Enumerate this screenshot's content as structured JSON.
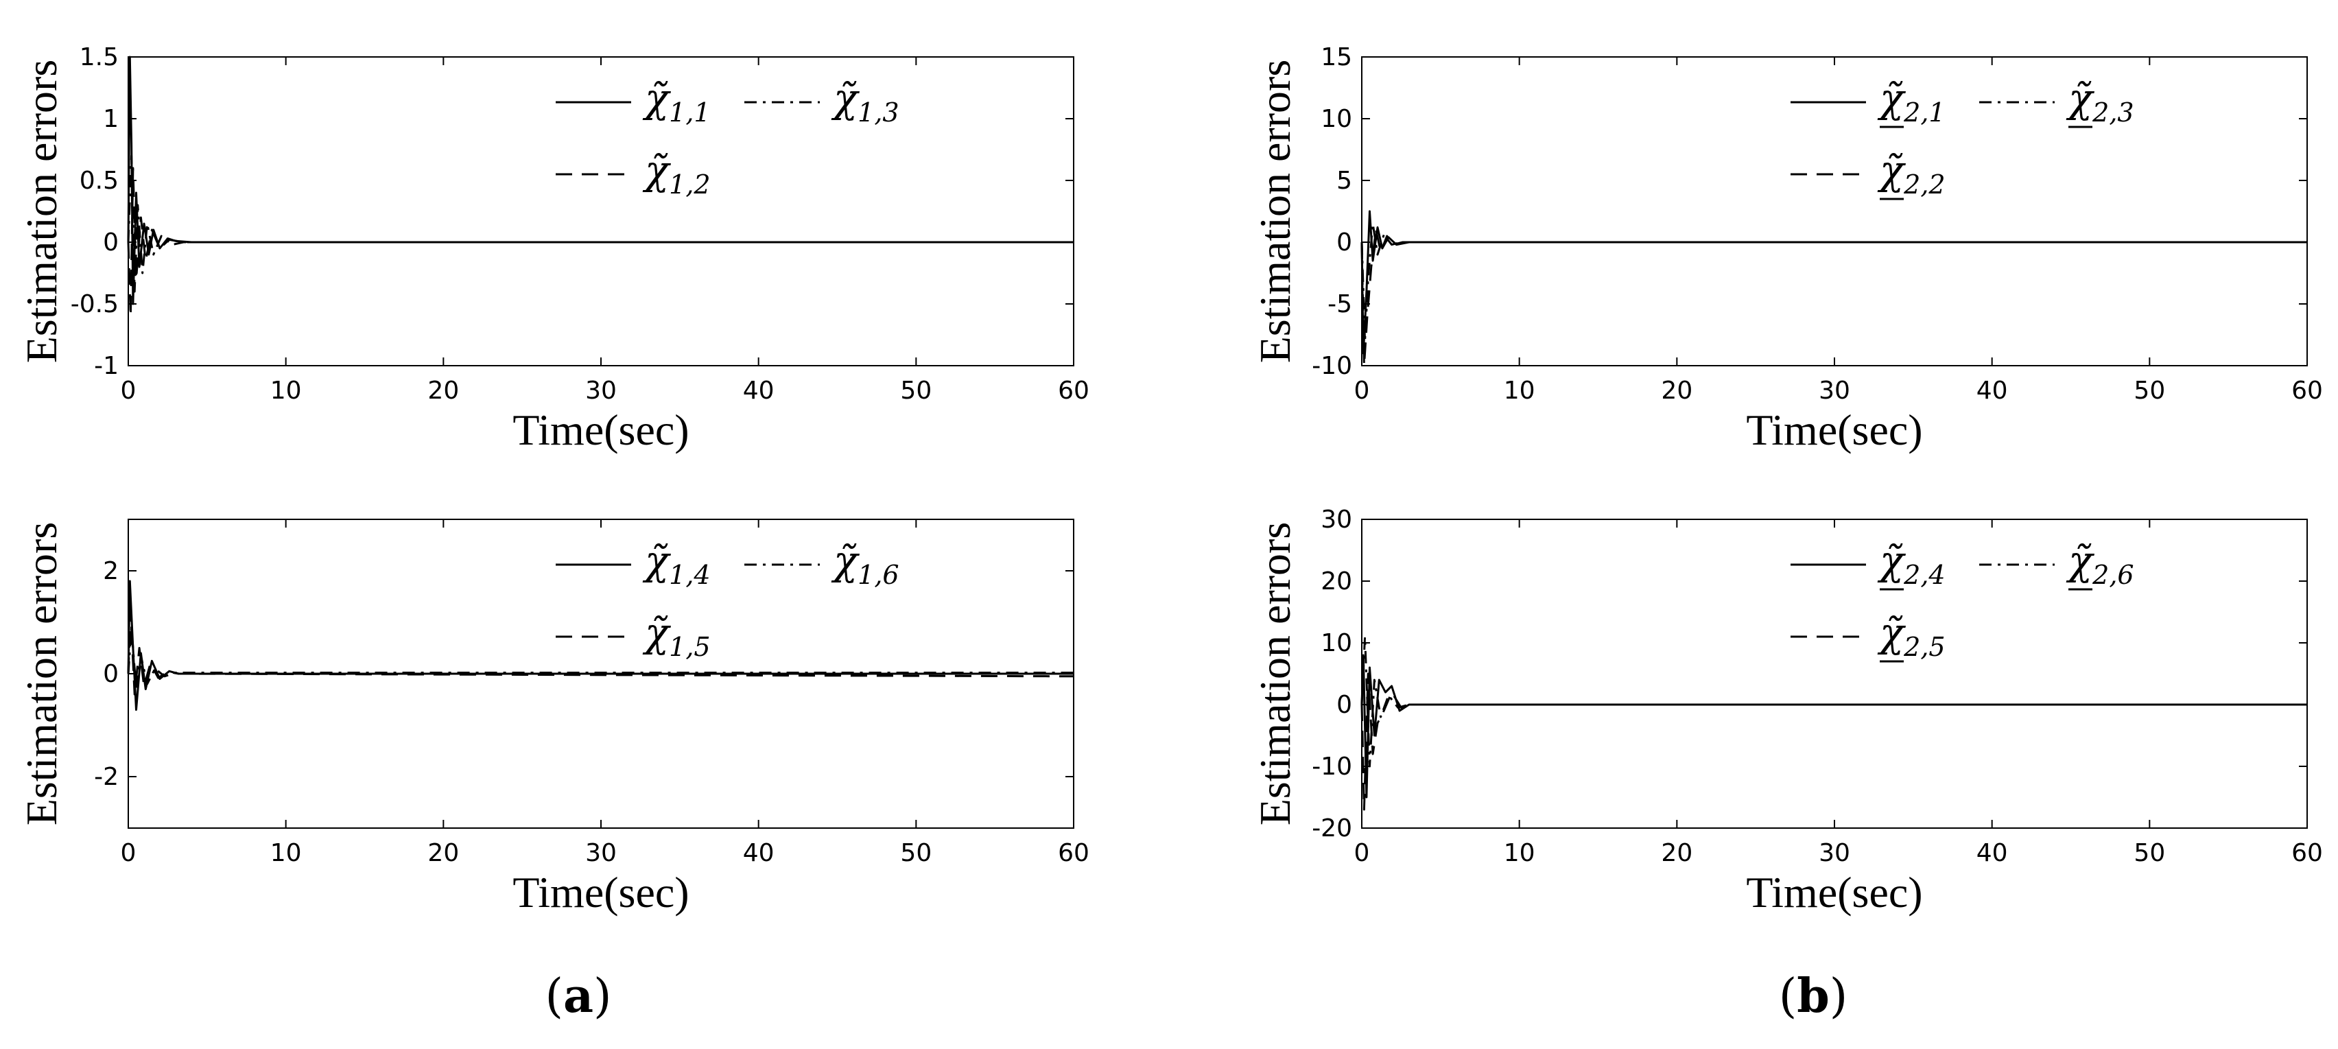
{
  "figure": {
    "captions": [
      {
        "open": "(",
        "letter": "a",
        "close": ")"
      },
      {
        "open": "(",
        "letter": "b",
        "close": ")"
      }
    ]
  },
  "chart_data": [
    {
      "type": "line",
      "ylabel": "Estimation errors",
      "xlabel": "Time(sec)",
      "xlim": [
        0,
        60
      ],
      "ylim": [
        -1,
        1.5
      ],
      "xticks": [
        "0",
        "10",
        "20",
        "30",
        "40",
        "50",
        "60"
      ],
      "yticks": [
        "-1",
        "-0.5",
        "0",
        "0.5",
        "1",
        "1.5"
      ],
      "grid": false,
      "legend_placement": "top-right",
      "legend_symbol": "χ̃",
      "legend_underline": false,
      "series": [
        {
          "name": "1,1",
          "style": "solid",
          "x": [
            0,
            0.1,
            0.2,
            0.3,
            0.5,
            0.7,
            1.0,
            1.3,
            1.6,
            2.0,
            2.5,
            3.0,
            4.0,
            60
          ],
          "y": [
            0,
            1.5,
            0.8,
            -0.5,
            0.4,
            -0.2,
            0.15,
            -0.1,
            0.1,
            -0.05,
            0.03,
            0.01,
            0,
            0
          ]
        },
        {
          "name": "1,2",
          "style": "dashed",
          "x": [
            0,
            0.15,
            0.3,
            0.5,
            0.8,
            1.1,
            1.5,
            2.0,
            2.6,
            3.5,
            60
          ],
          "y": [
            0,
            -0.6,
            0.6,
            -0.3,
            0.2,
            -0.15,
            0.1,
            -0.05,
            0.02,
            0,
            0
          ]
        },
        {
          "name": "1,3",
          "style": "dashdot",
          "x": [
            0,
            0.2,
            0.4,
            0.6,
            0.9,
            1.2,
            1.6,
            2.1,
            2.8,
            3.5,
            60
          ],
          "y": [
            0,
            0.7,
            -0.4,
            0.3,
            -0.25,
            0.15,
            -0.1,
            0.05,
            -0.02,
            0,
            0
          ]
        }
      ]
    },
    {
      "type": "line",
      "ylabel": "Estimation errors",
      "xlabel": "Time(sec)",
      "xlim": [
        0,
        60
      ],
      "ylim": [
        -10,
        15
      ],
      "xticks": [
        "0",
        "10",
        "20",
        "30",
        "40",
        "50",
        "60"
      ],
      "yticks": [
        "-10",
        "-5",
        "0",
        "5",
        "10",
        "15"
      ],
      "grid": false,
      "legend_placement": "top-right",
      "legend_symbol": "χ̃",
      "legend_underline": true,
      "series": [
        {
          "name": "2,1",
          "style": "solid",
          "x": [
            0,
            0.1,
            0.3,
            0.5,
            0.7,
            1.0,
            1.3,
            1.7,
            2.2,
            3.0,
            60
          ],
          "y": [
            0,
            -9,
            -4,
            2.5,
            -1.5,
            1.2,
            -0.5,
            0.4,
            -0.2,
            0,
            0
          ]
        },
        {
          "name": "2,2",
          "style": "dashed",
          "x": [
            0,
            0.15,
            0.35,
            0.6,
            0.9,
            1.2,
            1.6,
            2.0,
            2.6,
            60
          ],
          "y": [
            0,
            -10,
            -6,
            -2,
            1,
            -0.8,
            0.5,
            -0.2,
            0,
            0
          ]
        },
        {
          "name": "2,3",
          "style": "dashdot",
          "x": [
            0,
            0.2,
            0.4,
            0.7,
            1.0,
            1.4,
            1.9,
            2.5,
            60
          ],
          "y": [
            0,
            -8,
            -3,
            1.5,
            -1,
            0.6,
            -0.2,
            0,
            0
          ]
        }
      ]
    },
    {
      "type": "line",
      "ylabel": "Estimation errors",
      "xlabel": "Time(sec)",
      "xlim": [
        0,
        60
      ],
      "ylim": [
        -3,
        3
      ],
      "xticks": [
        "0",
        "10",
        "20",
        "30",
        "40",
        "50",
        "60"
      ],
      "yticks": [
        "-2",
        "0",
        "2"
      ],
      "grid": false,
      "legend_placement": "top-right",
      "legend_symbol": "χ̃",
      "legend_underline": false,
      "series": [
        {
          "name": "1,4",
          "style": "solid",
          "x": [
            0,
            0.1,
            0.3,
            0.5,
            0.8,
            1.1,
            1.5,
            2.0,
            2.6,
            3.2,
            60
          ],
          "y": [
            0,
            1.8,
            0.5,
            -0.7,
            0.4,
            -0.3,
            0.25,
            -0.1,
            0.05,
            0,
            0
          ]
        },
        {
          "name": "1,5",
          "style": "dashed",
          "x": [
            0,
            0.15,
            0.4,
            0.7,
            1.0,
            1.4,
            1.9,
            2.5,
            3.2,
            60
          ],
          "y": [
            0,
            1.2,
            -0.4,
            0.5,
            -0.25,
            0.2,
            -0.08,
            0.04,
            0,
            -0.05
          ]
        },
        {
          "name": "1,6",
          "style": "dashdot",
          "x": [
            0,
            0.2,
            0.5,
            0.8,
            1.2,
            1.7,
            2.3,
            3.0,
            60
          ],
          "y": [
            0,
            0.9,
            -0.3,
            0.35,
            -0.2,
            0.1,
            -0.05,
            0.02,
            0.02
          ]
        }
      ]
    },
    {
      "type": "line",
      "ylabel": "Estimation errors",
      "xlabel": "Time(sec)",
      "xlim": [
        0,
        60
      ],
      "ylim": [
        -20,
        30
      ],
      "xticks": [
        "0",
        "10",
        "20",
        "30",
        "40",
        "50",
        "60"
      ],
      "yticks": [
        "-20",
        "-10",
        "0",
        "10",
        "20",
        "30"
      ],
      "grid": false,
      "legend_placement": "top-right",
      "legend_symbol": "χ̃",
      "legend_underline": true,
      "series": [
        {
          "name": "2,4",
          "style": "solid",
          "x": [
            0,
            0.1,
            0.3,
            0.5,
            0.8,
            1.1,
            1.5,
            1.9,
            2.4,
            3.0,
            60
          ],
          "y": [
            0,
            8,
            -15,
            6,
            -5,
            4,
            2,
            3,
            -1,
            0,
            0
          ]
        },
        {
          "name": "2,5",
          "style": "dashed",
          "x": [
            0,
            0.15,
            0.4,
            0.7,
            1.0,
            1.4,
            1.9,
            2.5,
            3.2,
            60
          ],
          "y": [
            0,
            -17,
            5,
            -8,
            -3,
            -1,
            2,
            -0.5,
            0,
            0
          ]
        },
        {
          "name": "2,6",
          "style": "dashdot",
          "x": [
            0,
            0.2,
            0.5,
            0.8,
            1.2,
            1.7,
            2.3,
            3.0,
            60
          ],
          "y": [
            0,
            11,
            -10,
            4,
            -2,
            1.5,
            -0.5,
            0,
            0
          ]
        }
      ]
    }
  ]
}
